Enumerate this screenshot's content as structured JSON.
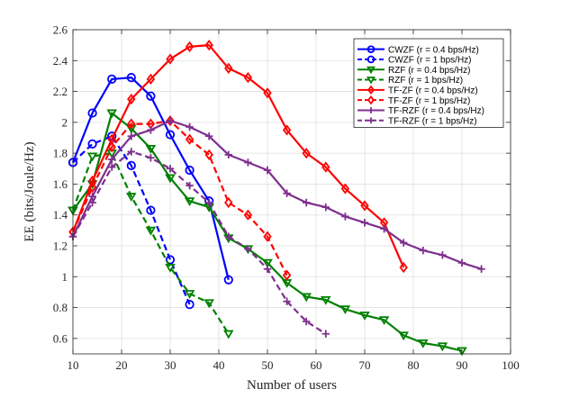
{
  "chart_data": {
    "type": "line",
    "xlabel": "Number of users",
    "ylabel": "EE (bits/Joule/Hz)",
    "xlim": [
      10,
      100
    ],
    "ylim": [
      0.5,
      2.6
    ],
    "xticks": [
      10,
      20,
      30,
      40,
      50,
      60,
      70,
      80,
      90,
      100
    ],
    "yticks": [
      0.6,
      0.8,
      1,
      1.2,
      1.4,
      1.6,
      1.8,
      2,
      2.2,
      2.4,
      2.6
    ],
    "xtick_labels": [
      "10",
      "20",
      "30",
      "40",
      "50",
      "60",
      "70",
      "80",
      "90",
      "100"
    ],
    "ytick_labels": [
      "0.6",
      "0.8",
      "1",
      "1.2",
      "1.4",
      "1.6",
      "1.8",
      "2",
      "2.2",
      "2.4",
      "2.6"
    ],
    "grid": true,
    "legend_position": "top-right",
    "series": [
      {
        "name": "CWZF (r = 0.4 bps/Hz)",
        "color": "#0000ff",
        "style": "solid",
        "marker": "circle",
        "x": [
          10,
          14,
          18,
          22,
          26,
          30,
          34,
          38,
          42
        ],
        "y": [
          1.74,
          2.06,
          2.28,
          2.29,
          2.17,
          1.92,
          1.69,
          1.49,
          0.98
        ]
      },
      {
        "name": "CWZF (r = 1 bps/Hz)",
        "color": "#0000ff",
        "style": "dashed",
        "marker": "circle",
        "x": [
          10,
          14,
          18,
          22,
          26,
          30,
          34
        ],
        "y": [
          1.74,
          1.86,
          1.91,
          1.72,
          1.43,
          1.11,
          0.82
        ]
      },
      {
        "name": "RZF (r = 0.4 bps/Hz)",
        "color": "#008000",
        "style": "solid",
        "marker": "triangle-down",
        "x": [
          10,
          14,
          18,
          22,
          26,
          30,
          34,
          38,
          42,
          46,
          50,
          54,
          58,
          62,
          66,
          70,
          74,
          78,
          82,
          86,
          90
        ],
        "y": [
          1.43,
          1.6,
          2.06,
          1.96,
          1.83,
          1.64,
          1.49,
          1.45,
          1.25,
          1.18,
          1.09,
          0.96,
          0.87,
          0.85,
          0.79,
          0.75,
          0.72,
          0.62,
          0.57,
          0.55,
          0.52
        ]
      },
      {
        "name": "RZF (r = 1 bps/Hz)",
        "color": "#008000",
        "style": "dashed",
        "marker": "triangle-down",
        "x": [
          10,
          14,
          18,
          22,
          26,
          30,
          34,
          38,
          42
        ],
        "y": [
          1.43,
          1.78,
          1.8,
          1.52,
          1.3,
          1.06,
          0.89,
          0.83,
          0.63
        ]
      },
      {
        "name": "TF-ZF (r = 0.4 bps/Hz)",
        "color": "#ff0000",
        "style": "solid",
        "marker": "diamond",
        "x": [
          10,
          14,
          18,
          22,
          26,
          30,
          34,
          38,
          42,
          46,
          50,
          54,
          58,
          62,
          66,
          70,
          74,
          78
        ],
        "y": [
          1.29,
          1.62,
          1.89,
          2.15,
          2.28,
          2.41,
          2.49,
          2.5,
          2.35,
          2.29,
          2.19,
          1.95,
          1.8,
          1.71,
          1.57,
          1.46,
          1.35,
          1.06
        ]
      },
      {
        "name": "TF-ZF (r = 1 bps/Hz)",
        "color": "#ff0000",
        "style": "dashed",
        "marker": "diamond",
        "x": [
          10,
          14,
          18,
          22,
          26,
          30,
          34,
          38,
          42,
          46,
          50,
          54
        ],
        "y": [
          1.29,
          1.58,
          1.84,
          1.99,
          1.99,
          2.01,
          1.89,
          1.79,
          1.48,
          1.4,
          1.26,
          1.01
        ]
      },
      {
        "name": "TF-RZF (r = 0.4 bps/Hz)",
        "color": "#7e2f8e",
        "style": "solid",
        "marker": "plus",
        "x": [
          10,
          14,
          18,
          22,
          26,
          30,
          34,
          38,
          42,
          46,
          50,
          54,
          58,
          62,
          66,
          70,
          74,
          78,
          82,
          86,
          90,
          94
        ],
        "y": [
          1.26,
          1.52,
          1.76,
          1.91,
          1.95,
          2.01,
          1.97,
          1.91,
          1.79,
          1.74,
          1.69,
          1.54,
          1.48,
          1.45,
          1.39,
          1.35,
          1.31,
          1.22,
          1.17,
          1.14,
          1.09,
          1.05
        ]
      },
      {
        "name": "TF-RZF (r = 1 bps/Hz)",
        "color": "#7e2f8e",
        "style": "dashed",
        "marker": "plus",
        "x": [
          10,
          14,
          18,
          22,
          26,
          30,
          34,
          38,
          42,
          46,
          50,
          54,
          58,
          62
        ],
        "y": [
          1.26,
          1.48,
          1.71,
          1.81,
          1.77,
          1.7,
          1.59,
          1.48,
          1.26,
          1.18,
          1.05,
          0.84,
          0.71,
          0.63
        ]
      }
    ]
  }
}
